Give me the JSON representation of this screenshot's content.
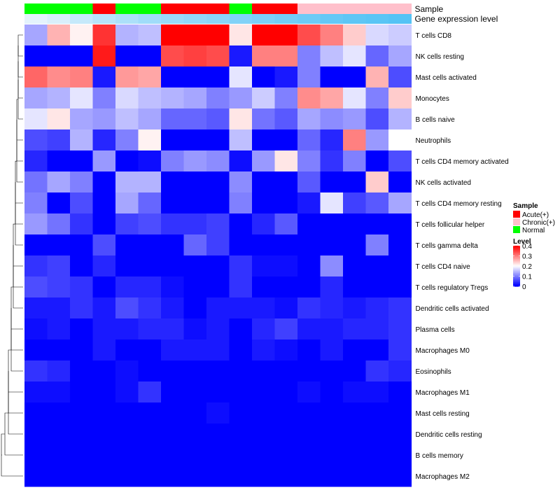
{
  "chart_data": {
    "type": "heatmap",
    "title": "",
    "annotations": {
      "sample": {
        "label": "Sample",
        "values": [
          "Normal",
          "Normal",
          "Normal",
          "Acute(+)",
          "Normal",
          "Normal",
          "Acute(+)",
          "Acute(+)",
          "Acute(+)",
          "Normal",
          "Acute(+)",
          "Acute(+)",
          "Chronic(+)",
          "Chronic(+)",
          "Chronic(+)",
          "Chronic(+)",
          "Chronic(+)"
        ]
      },
      "expression": {
        "label": "Gene expression level",
        "values": [
          0.05,
          0.12,
          0.25,
          0.35,
          0.42,
          0.5,
          0.55,
          0.6,
          0.65,
          0.7,
          0.75,
          0.8,
          0.85,
          0.9,
          0.94,
          0.97,
          1.0
        ]
      }
    },
    "rows": [
      "T cells CD8",
      "NK cells resting",
      "Mast cells activated",
      "Monocytes",
      "B cells naive",
      "Neutrophils",
      "T cells CD4 memory activated",
      "NK cells activated",
      "T cells CD4 memory resting",
      "T cells follicular helper",
      "T cells gamma delta",
      "T cells CD4 naive",
      "T cells regulatory  Tregs",
      "Dendritic cells activated",
      "Plasma cells",
      "Macrophages M0",
      "Eosinophils",
      "Macrophages M1",
      "Mast cells resting",
      "Dendritic cells resting",
      "B cells memory",
      "Macrophages M2"
    ],
    "values": [
      [
        0.13,
        0.26,
        0.21,
        0.36,
        0.14,
        0.15,
        0.42,
        0.4,
        0.42,
        0.22,
        0.42,
        0.42,
        0.34,
        0.3,
        0.24,
        0.17,
        0.16
      ],
      [
        0.0,
        0.0,
        0.0,
        0.38,
        0.0,
        0.0,
        0.34,
        0.35,
        0.34,
        0.02,
        0.3,
        0.3,
        0.1,
        0.15,
        0.18,
        0.08,
        0.13
      ],
      [
        0.32,
        0.29,
        0.3,
        0.02,
        0.28,
        0.27,
        0.0,
        0.0,
        0.0,
        0.18,
        0.0,
        0.02,
        0.1,
        0.0,
        0.0,
        0.26,
        0.06
      ],
      [
        0.13,
        0.14,
        0.18,
        0.1,
        0.17,
        0.15,
        0.14,
        0.13,
        0.1,
        0.12,
        0.16,
        0.1,
        0.29,
        0.27,
        0.18,
        0.1,
        0.24
      ],
      [
        0.18,
        0.22,
        0.13,
        0.12,
        0.15,
        0.13,
        0.08,
        0.08,
        0.07,
        0.22,
        0.09,
        0.07,
        0.13,
        0.11,
        0.12,
        0.06,
        0.14
      ],
      [
        0.06,
        0.05,
        0.14,
        0.03,
        0.1,
        0.21,
        0.0,
        0.0,
        0.0,
        0.15,
        0.0,
        0.0,
        0.08,
        0.03,
        0.3,
        0.12,
        0.2
      ],
      [
        0.03,
        0.0,
        0.0,
        0.12,
        0.0,
        0.01,
        0.1,
        0.12,
        0.11,
        0.01,
        0.12,
        0.22,
        0.1,
        0.04,
        0.1,
        0.0,
        0.06
      ],
      [
        0.09,
        0.13,
        0.1,
        0.0,
        0.14,
        0.14,
        0.0,
        0.0,
        0.0,
        0.11,
        0.0,
        0.0,
        0.07,
        0.0,
        0.0,
        0.24,
        0.0
      ],
      [
        0.1,
        0.0,
        0.06,
        0.0,
        0.13,
        0.08,
        0.0,
        0.0,
        0.0,
        0.1,
        0.0,
        0.0,
        0.02,
        0.18,
        0.05,
        0.07,
        0.13
      ],
      [
        0.12,
        0.09,
        0.04,
        0.0,
        0.05,
        0.06,
        0.04,
        0.04,
        0.05,
        0.0,
        0.03,
        0.07,
        0.0,
        0.0,
        0.0,
        0.0,
        0.0
      ],
      [
        0.0,
        0.0,
        0.0,
        0.06,
        0.0,
        0.0,
        0.0,
        0.08,
        0.05,
        0.0,
        0.0,
        0.0,
        0.0,
        0.0,
        0.0,
        0.1,
        0.0
      ],
      [
        0.04,
        0.05,
        0.0,
        0.03,
        0.0,
        0.0,
        0.0,
        0.0,
        0.0,
        0.04,
        0.01,
        0.01,
        0.0,
        0.11,
        0.0,
        0.0,
        0.0
      ],
      [
        0.06,
        0.05,
        0.04,
        0.0,
        0.03,
        0.03,
        0.01,
        0.0,
        0.0,
        0.04,
        0.0,
        0.0,
        0.0,
        0.03,
        0.0,
        0.0,
        0.0
      ],
      [
        0.02,
        0.02,
        0.04,
        0.02,
        0.06,
        0.04,
        0.02,
        0.0,
        0.02,
        0.02,
        0.02,
        0.01,
        0.04,
        0.03,
        0.02,
        0.03,
        0.04
      ],
      [
        0.01,
        0.02,
        0.0,
        0.02,
        0.02,
        0.03,
        0.03,
        0.01,
        0.02,
        0.0,
        0.03,
        0.05,
        0.02,
        0.02,
        0.03,
        0.03,
        0.04
      ],
      [
        0.0,
        0.0,
        0.0,
        0.02,
        0.0,
        0.0,
        0.02,
        0.02,
        0.02,
        0.0,
        0.02,
        0.01,
        0.0,
        0.02,
        0.0,
        0.0,
        0.04
      ],
      [
        0.04,
        0.03,
        0.0,
        0.0,
        0.01,
        0.0,
        0.0,
        0.0,
        0.0,
        0.0,
        0.0,
        0.0,
        0.0,
        0.0,
        0.0,
        0.04,
        0.03
      ],
      [
        0.01,
        0.01,
        0.0,
        0.0,
        0.01,
        0.04,
        0.0,
        0.0,
        0.0,
        0.0,
        0.0,
        0.0,
        0.01,
        0.0,
        0.01,
        0.01,
        0.0
      ],
      [
        0.0,
        0.0,
        0.0,
        0.0,
        0.0,
        0.0,
        0.0,
        0.0,
        0.01,
        0.0,
        0.0,
        0.0,
        0.0,
        0.0,
        0.0,
        0.0,
        0.0
      ],
      [
        0.0,
        0.0,
        0.0,
        0.0,
        0.0,
        0.0,
        0.0,
        0.0,
        0.0,
        0.0,
        0.0,
        0.0,
        0.0,
        0.0,
        0.0,
        0.0,
        0.0
      ],
      [
        0.0,
        0.0,
        0.0,
        0.0,
        0.0,
        0.0,
        0.0,
        0.0,
        0.0,
        0.0,
        0.0,
        0.0,
        0.0,
        0.0,
        0.0,
        0.0,
        0.0
      ],
      [
        0.0,
        0.0,
        0.0,
        0.0,
        0.0,
        0.0,
        0.0,
        0.0,
        0.0,
        0.0,
        0.0,
        0.0,
        0.0,
        0.0,
        0.0,
        0.0,
        0.0
      ]
    ],
    "dendrogram": [
      [
        0,
        3,
        1
      ],
      [
        1,
        3,
        2
      ],
      [
        2,
        3,
        3
      ],
      [
        3,
        3,
        4
      ],
      [
        4,
        3,
        5
      ],
      [
        5,
        4,
        6
      ],
      [
        6,
        4,
        7
      ],
      [
        7,
        4,
        8
      ],
      [
        8,
        5,
        9
      ],
      [
        9,
        5,
        10
      ],
      [
        10,
        5,
        11
      ],
      [
        11,
        6,
        12
      ],
      [
        12,
        6,
        13
      ],
      [
        13,
        6,
        14
      ],
      [
        14,
        7,
        15
      ],
      [
        15,
        7,
        16
      ],
      [
        16,
        7,
        17
      ],
      [
        17,
        8,
        18
      ],
      [
        18,
        8,
        19
      ],
      [
        19,
        8,
        20
      ],
      [
        20,
        9,
        21
      ],
      [
        21,
        10,
        22
      ]
    ],
    "color_scale": {
      "min": 0,
      "max": 0.4,
      "low": "#0000ff",
      "mid": "#ffffff",
      "high": "#ff0000",
      "mid_value": 0.2
    },
    "sample_colors": {
      "Acute(+)": "#ff0000",
      "Chronic(+)": "#ffc0cb",
      "Normal": "#00ff00"
    },
    "legend": {
      "sample_title": "Sample",
      "sample_entries": [
        "Acute(+)",
        "Chronic(+)",
        "Normal"
      ],
      "level_title": "Level",
      "level_ticks": [
        "0.4",
        "0.3",
        "0.2",
        "0.1",
        "0"
      ],
      "level_tick_values": [
        0.4,
        0.3,
        0.2,
        0.1,
        0
      ],
      "placement": "right"
    }
  }
}
